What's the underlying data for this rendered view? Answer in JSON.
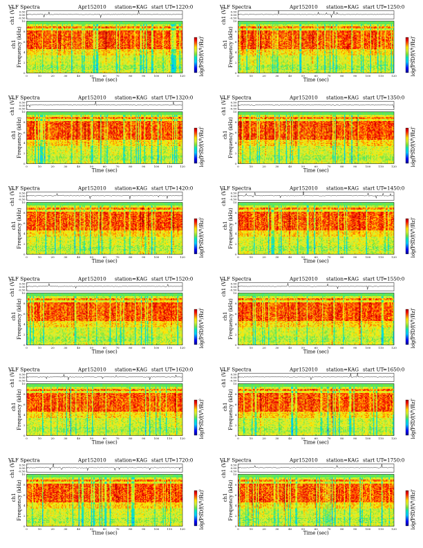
{
  "page": {
    "title": "VLF Spectra",
    "date": "Apr152010",
    "station": "station=KAG",
    "start_label": "start UT"
  },
  "axes": {
    "time_label": "Time (sec)",
    "freq_label": "Frequency (kHz)",
    "ts_label": "ch1 (V)",
    "ts_label_top": "ch1",
    "cbar_label": "log(PSD)(V²/Hz)",
    "ts_ticks": [
      "0.50",
      "0.00",
      "-0.50"
    ],
    "freq_ticks": [
      "0",
      "2",
      "4",
      "6",
      "8",
      "10"
    ],
    "time_ticks": [
      "0",
      "10",
      "20",
      "30",
      "40",
      "50",
      "60",
      "70",
      "80",
      "90",
      "100",
      "110",
      "120"
    ],
    "cbar_ticks": [
      "-1",
      "-2",
      "-3",
      "-4",
      "-5",
      "-6",
      "-7"
    ]
  },
  "chart_data": [
    {
      "type": "heatmap",
      "start_ut": "=1220:0",
      "xlim": [
        0,
        120
      ],
      "ylim": [
        0,
        10
      ],
      "ts_ylim": [
        -0.5,
        0.5
      ],
      "clim": [
        -7,
        -1
      ]
    },
    {
      "type": "heatmap",
      "start_ut": "=1250:0",
      "xlim": [
        0,
        120
      ],
      "ylim": [
        0,
        10
      ],
      "ts_ylim": [
        -0.5,
        0.5
      ],
      "clim": [
        -7,
        -1
      ]
    },
    {
      "type": "heatmap",
      "start_ut": "=1320:0",
      "xlim": [
        0,
        120
      ],
      "ylim": [
        0,
        10
      ],
      "ts_ylim": [
        -0.5,
        0.5
      ],
      "clim": [
        -7,
        -1
      ]
    },
    {
      "type": "heatmap",
      "start_ut": "=1350:0",
      "xlim": [
        0,
        120
      ],
      "ylim": [
        0,
        10
      ],
      "ts_ylim": [
        -0.5,
        0.5
      ],
      "clim": [
        -7,
        -1
      ]
    },
    {
      "type": "heatmap",
      "start_ut": "=1420:0",
      "xlim": [
        0,
        120
      ],
      "ylim": [
        0,
        10
      ],
      "ts_ylim": [
        -0.5,
        0.5
      ],
      "clim": [
        -7,
        -1
      ]
    },
    {
      "type": "heatmap",
      "start_ut": "=1450:0",
      "xlim": [
        0,
        120
      ],
      "ylim": [
        0,
        10
      ],
      "ts_ylim": [
        -0.5,
        0.5
      ],
      "clim": [
        -7,
        -1
      ]
    },
    {
      "type": "heatmap",
      "start_ut": "=1520:0",
      "xlim": [
        0,
        120
      ],
      "ylim": [
        0,
        10
      ],
      "ts_ylim": [
        -0.5,
        0.5
      ],
      "clim": [
        -7,
        -1
      ]
    },
    {
      "type": "heatmap",
      "start_ut": "=1550:0",
      "xlim": [
        0,
        120
      ],
      "ylim": [
        0,
        10
      ],
      "ts_ylim": [
        -0.5,
        0.5
      ],
      "clim": [
        -7,
        -1
      ]
    },
    {
      "type": "heatmap",
      "start_ut": "=1620:0",
      "xlim": [
        0,
        120
      ],
      "ylim": [
        0,
        10
      ],
      "ts_ylim": [
        -0.5,
        0.5
      ],
      "clim": [
        -7,
        -1
      ]
    },
    {
      "type": "heatmap",
      "start_ut": "=1650:0",
      "xlim": [
        0,
        120
      ],
      "ylim": [
        0,
        10
      ],
      "ts_ylim": [
        -0.5,
        0.5
      ],
      "clim": [
        -7,
        -1
      ]
    },
    {
      "type": "heatmap",
      "start_ut": "=1720:0",
      "xlim": [
        0,
        120
      ],
      "ylim": [
        0,
        10
      ],
      "ts_ylim": [
        -0.5,
        0.5
      ],
      "clim": [
        -7,
        -1
      ]
    },
    {
      "type": "heatmap",
      "start_ut": "=1750:0",
      "xlim": [
        0,
        120
      ],
      "ylim": [
        0,
        10
      ],
      "ts_ylim": [
        -0.5,
        0.5
      ],
      "clim": [
        -7,
        -1
      ]
    }
  ]
}
